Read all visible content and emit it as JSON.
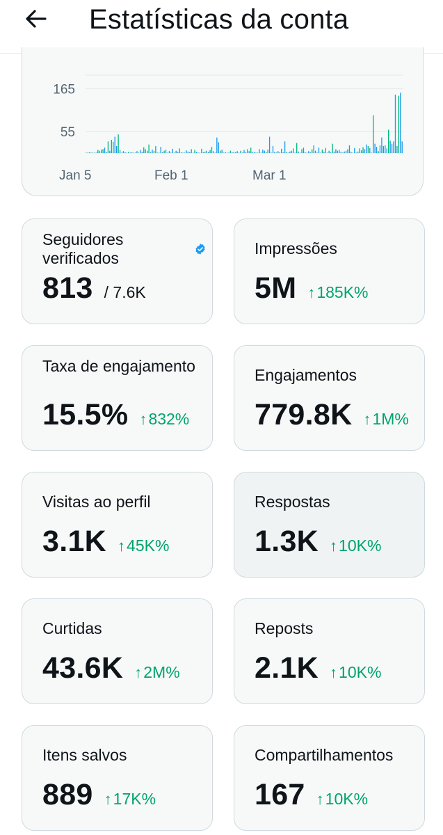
{
  "header": {
    "title": "Estatísticas da conta",
    "back_icon": "arrow-left-icon"
  },
  "chart_data": {
    "type": "bar",
    "x_ticks": [
      "Jan 5",
      "Feb 1",
      "Mar 1"
    ],
    "y_ticks": [
      55,
      165
    ],
    "ylim": [
      0,
      200
    ],
    "grid": true,
    "values": [
      1,
      1,
      2,
      1,
      0,
      0,
      1,
      8,
      6,
      9,
      10,
      14,
      3,
      30,
      6,
      34,
      29,
      42,
      18,
      48,
      8,
      1,
      5,
      2,
      0,
      3,
      1,
      2,
      1,
      1,
      5,
      1,
      8,
      3,
      15,
      10,
      6,
      22,
      2,
      9,
      6,
      18,
      1,
      1,
      16,
      2,
      6,
      9,
      1,
      5,
      0,
      11,
      1,
      6,
      3,
      12,
      2,
      1,
      1,
      7,
      4,
      2,
      10,
      1,
      8,
      3,
      1,
      0,
      11,
      2,
      4,
      6,
      3,
      8,
      16,
      5,
      1,
      40,
      28,
      6,
      9,
      1,
      2,
      1,
      0,
      6,
      2,
      3,
      2,
      5,
      0,
      6,
      1,
      8,
      3,
      10,
      5,
      14,
      3,
      3,
      1,
      1,
      10,
      0,
      9,
      6,
      3,
      9,
      42,
      1,
      18,
      3,
      0,
      5,
      2,
      11,
      2,
      30,
      3,
      1,
      4,
      6,
      12,
      1,
      26,
      4,
      1,
      10,
      14,
      2,
      1,
      5,
      2,
      10,
      20,
      6,
      1,
      14,
      1,
      9,
      3,
      13,
      0,
      6,
      2,
      24,
      4,
      10,
      6,
      8,
      3,
      1,
      4,
      6,
      10,
      20,
      3,
      1,
      13,
      1,
      4,
      12,
      7,
      15,
      10,
      22,
      18,
      13,
      1,
      97,
      24,
      16,
      5,
      20,
      40,
      18,
      20,
      12,
      60,
      32,
      24,
      30,
      150,
      18,
      147,
      155,
      30
    ],
    "bar_color": "#1d9bf0",
    "bar_color_alt": "#00ba7c"
  },
  "cards": [
    {
      "label": "Seguidores verificados",
      "value": "813",
      "total": "/ 7.6K",
      "verified_icon": "verified-badge-icon"
    },
    {
      "label": "Impressões",
      "value": "5M",
      "delta": "185K%"
    },
    {
      "label": "Taxa de engajamento",
      "value": "15.5%",
      "delta": "832%"
    },
    {
      "label": "Engajamentos",
      "value": "779.8K",
      "delta": "1M%"
    },
    {
      "label": "Visitas ao perfil",
      "value": "3.1K",
      "delta": "45K%"
    },
    {
      "label": "Respostas",
      "value": "1.3K",
      "delta": "10K%"
    },
    {
      "label": "Curtidas",
      "value": "43.6K",
      "delta": "2M%"
    },
    {
      "label": "Reposts",
      "value": "2.1K",
      "delta": "10K%"
    },
    {
      "label": "Itens salvos",
      "value": "889",
      "delta": "17K%"
    },
    {
      "label": "Compartilhamentos",
      "value": "167",
      "delta": "10K%"
    }
  ],
  "colors": {
    "accent": "#1d9bf0",
    "positive": "#00a36c",
    "border": "#cfd9de",
    "card_bg": "#f7f9f9"
  }
}
